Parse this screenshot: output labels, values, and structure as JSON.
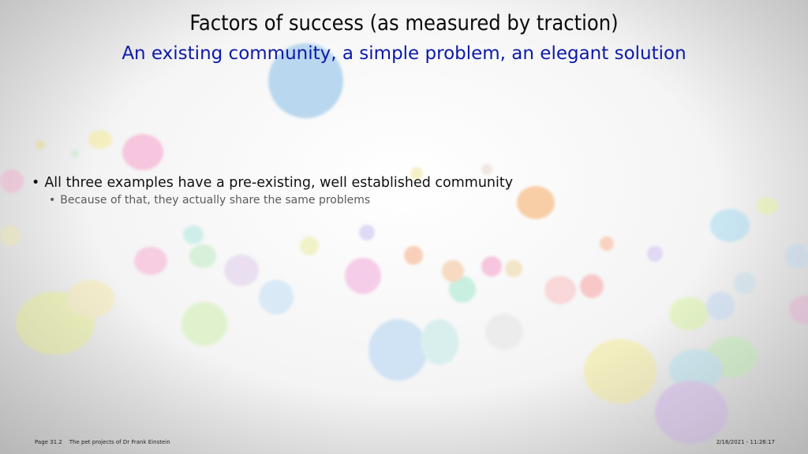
{
  "slide": {
    "title": "Factors of success (as measured by traction)",
    "subtitle": "An existing community, a simple problem, an elegant solution",
    "bullet_1": "All three examples have a pre-existing, well established community",
    "bullet_1_sub": "Because of that, they actually share the same problems"
  },
  "footer": {
    "page": "Page 31.2",
    "project": "The pet projects of Dr Frank Einstein",
    "datetime": "2/16/2021 - 11:26:17"
  },
  "colors": {
    "title": "#0a0a0a",
    "subtitle": "#0c1aa8",
    "bullet_sub": "#5a5a5a"
  }
}
